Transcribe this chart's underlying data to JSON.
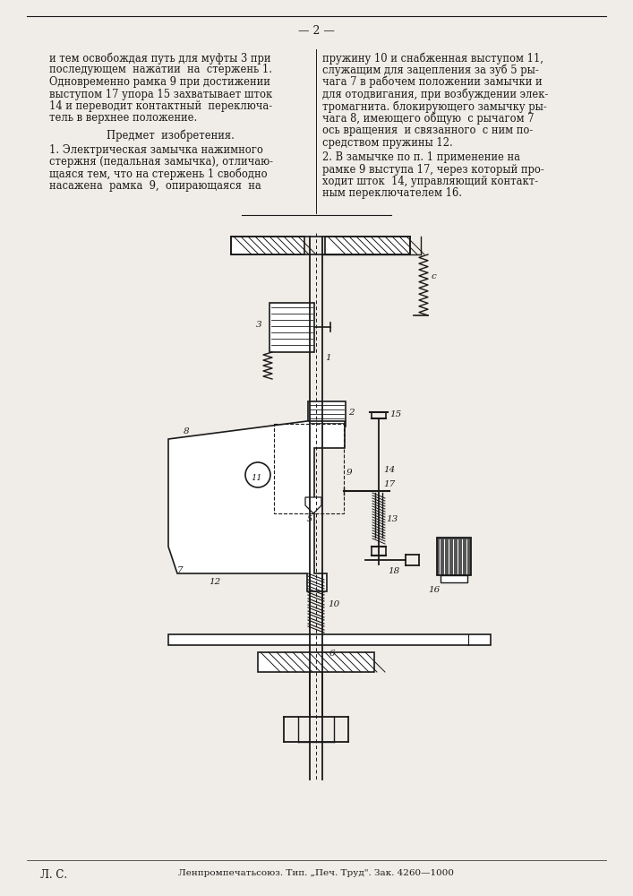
{
  "page_number": "— 2 —",
  "text_col1_lines": [
    "и тем освобождая путь для муфты 3 при",
    "последующем  нажатии  на  стержень 1.",
    "Одновременно рамка 9 при достижении",
    "выступом 17 упора 15 захватывает шток",
    "14 и переводит контактный  переключа-",
    "тель в верхнее положение."
  ],
  "text_col1_header": "Предмет  изобретения.",
  "text_col1_claim1_lines": [
    "1. Электрическая замычка нажимного",
    "стержня (педальная замычка), отличаю-",
    "щаяся тем, что на стержень 1 свободно",
    "насажена  рамка  9,  опирающаяся  на"
  ],
  "text_col2_lines": [
    "пружину 10 и снабженная выступом 11,",
    "служащим для зацепления за зуб 5 ры-",
    "чага 7 в рабочем положении замычки и",
    "для отодвигания, при возбуждении элек-",
    "тромагнита. блокирующего замычку ры-",
    "чага 8, имеющего общую  с рычагом 7",
    "ось вращения  и связанного  с ним по-",
    "средством пружины 12."
  ],
  "text_col2_claim2_lines": [
    "2. В замычке по п. 1 применение на",
    "рамке 9 выступа 17, через который про-",
    "ходит шток  14, управляющий контакт-",
    "ным переключателем 16."
  ],
  "footer_left": "Л. С.",
  "footer_center": "Ленпромпечатьсоюз. Тип. „Печ. Труд\". Зак. 4260—1000",
  "bg_color": "#f0ede8",
  "text_color": "#1a1a1a",
  "line_color": "#1a1a1a"
}
